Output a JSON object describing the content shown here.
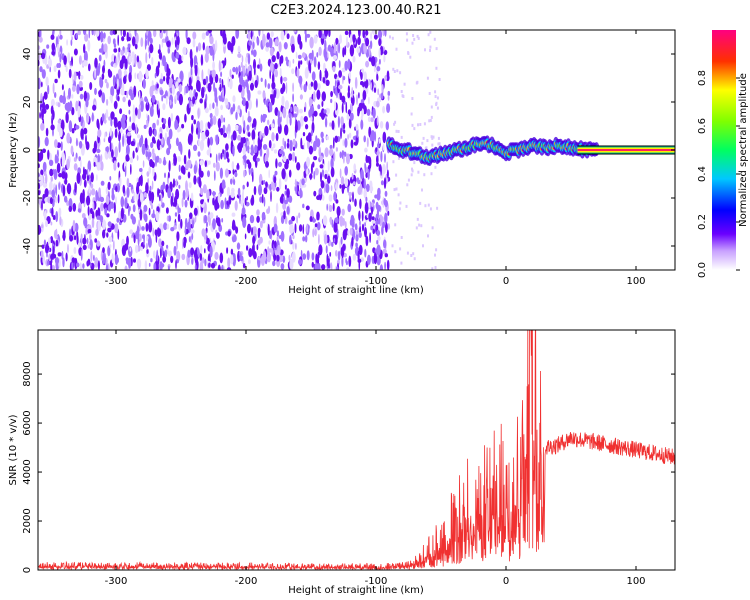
{
  "title": "C2E3.2024.123.00.40.R21",
  "chart_data": [
    {
      "type": "heatmap",
      "xlabel": "Height of straight line (km)",
      "ylabel": "Frequency (Hz)",
      "xlim": [
        -360,
        130
      ],
      "ylim": [
        -50,
        50
      ],
      "xticks": [
        -300,
        -200,
        -100,
        0,
        100
      ],
      "yticks": [
        -40,
        -20,
        0,
        20,
        40
      ],
      "noise_region_end_km": -90,
      "colorbar": {
        "label": "Normalized spectral amplitude",
        "ticks": [
          0.0,
          0.2,
          0.4,
          0.6,
          0.8
        ],
        "range": [
          0,
          1
        ]
      },
      "ridge": {
        "x": [
          -90,
          -80,
          -70,
          -60,
          -50,
          -40,
          -30,
          -20,
          -10,
          0,
          10,
          20,
          30,
          40,
          50,
          60,
          70,
          130
        ],
        "frequency": [
          3,
          0,
          -1,
          -3,
          -2,
          0,
          1,
          3,
          2,
          -1,
          0,
          2,
          1,
          2,
          1,
          0,
          0,
          0
        ]
      }
    },
    {
      "type": "line",
      "xlabel": "Height of straight line (km)",
      "ylabel": "SNR (10 * v/v)",
      "xlim": [
        -360,
        130
      ],
      "ylim": [
        0,
        9800
      ],
      "xticks": [
        -300,
        -200,
        -100,
        0,
        100
      ],
      "yticks": [
        0,
        2000,
        4000,
        6000,
        8000
      ],
      "color": "#f03030",
      "envelope": {
        "x": [
          -360,
          -300,
          -200,
          -100,
          -80,
          -70,
          -60,
          -50,
          -40,
          -30,
          -20,
          -10,
          0,
          10,
          15,
          20,
          25,
          30,
          40,
          50,
          60,
          70,
          80,
          90,
          100,
          110,
          120,
          130
        ],
        "snr": [
          200,
          200,
          180,
          150,
          200,
          300,
          700,
          1200,
          1800,
          2500,
          2700,
          3000,
          3300,
          4000,
          5500,
          6500,
          5600,
          5000,
          5100,
          5400,
          5300,
          5200,
          5100,
          5000,
          4900,
          4800,
          4700,
          4600
        ]
      },
      "spike": {
        "x": 19,
        "snr": 9800
      }
    }
  ]
}
